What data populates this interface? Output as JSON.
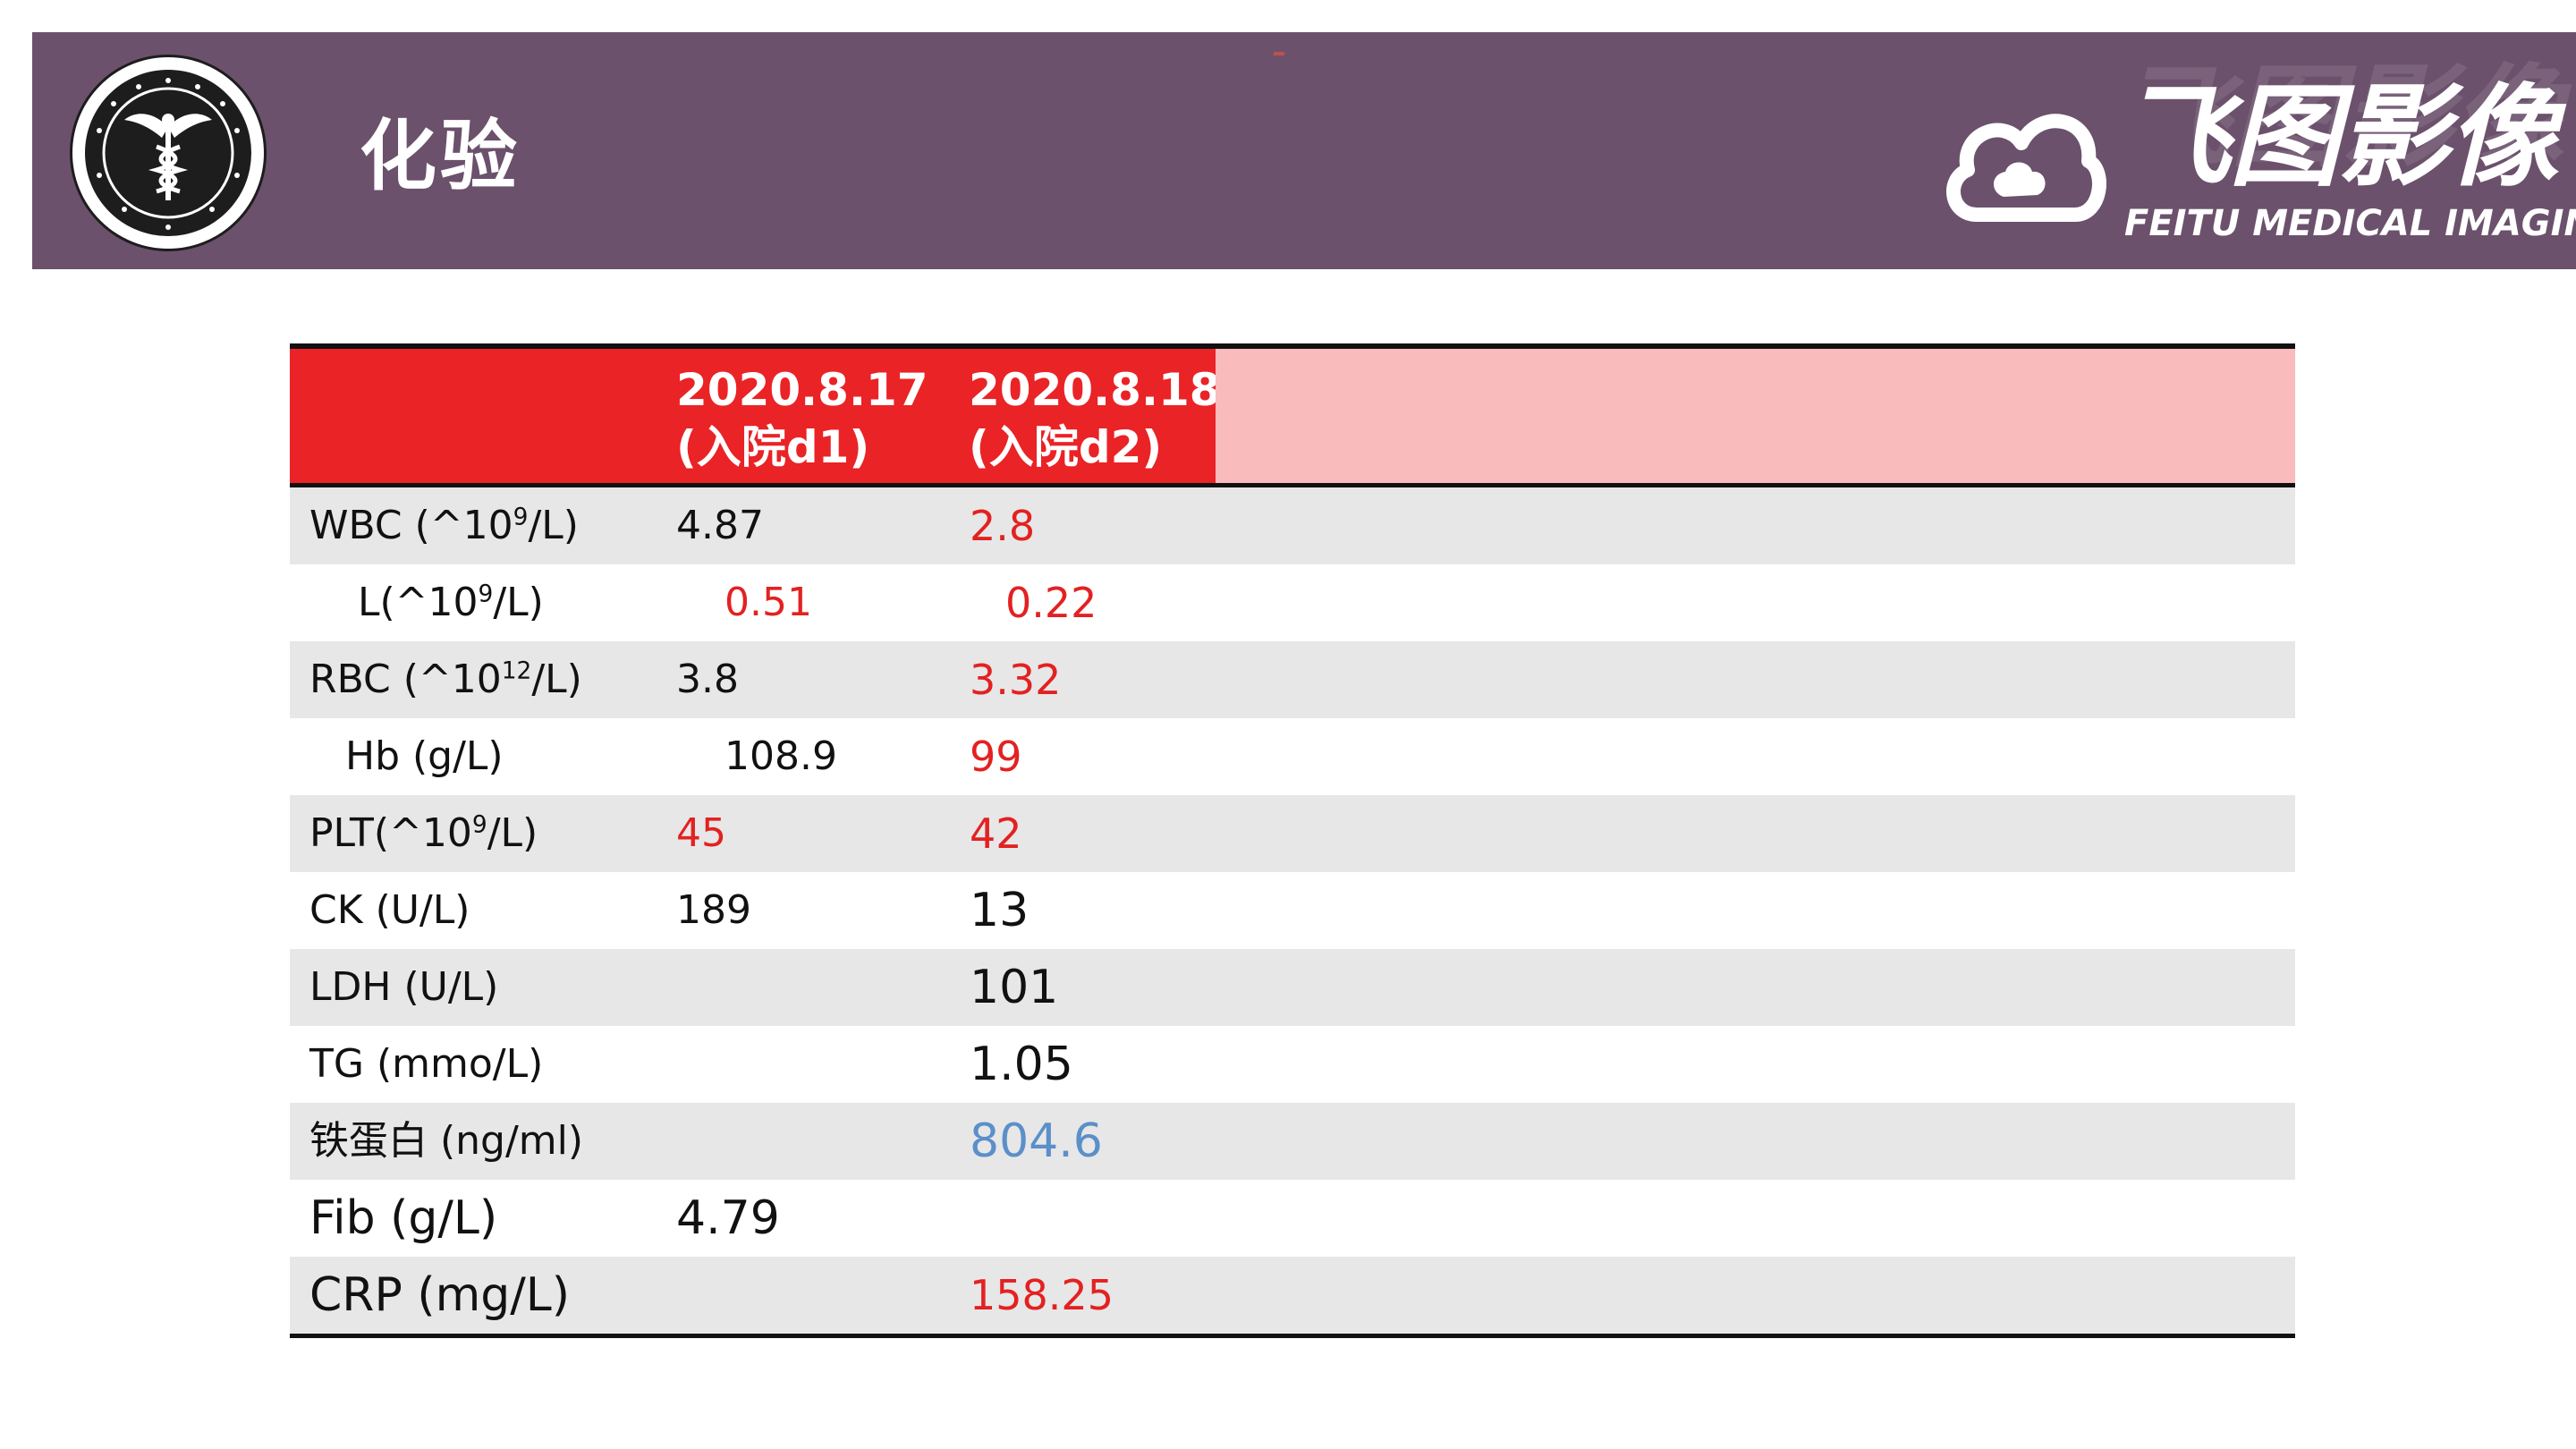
{
  "colors": {
    "header_band": "#6b516c",
    "table_header_red": "#ea2326",
    "table_header_pink": "#f9bbbb",
    "row_shade": "#e7e7e7",
    "value_red": "#e32121",
    "value_blue": "#5b8fc9"
  },
  "slide": {
    "title": "化验"
  },
  "emblem": {
    "icon": "caduceus-icon"
  },
  "brand": {
    "name_cn": "飞图影像",
    "name_en": "FEITU MEDICAL IMAGING",
    "icon": "cloud-logo-icon"
  },
  "table": {
    "headers": [
      {
        "date": "",
        "note": ""
      },
      {
        "date": "2020.8.17",
        "note": "(入院d1)"
      },
      {
        "date": "2020.8.18",
        "note": "(入院d2)"
      }
    ],
    "rows": [
      {
        "name": "WBC (^10",
        "sup": "9",
        "unit": "/L)",
        "d1": "4.87",
        "d2": "2.8"
      },
      {
        "name": "L(^10",
        "sup": "9",
        "unit": "/L)",
        "d1": "0.51",
        "d2": "0.22"
      },
      {
        "name": "RBC  (^10",
        "sup": "12",
        "unit": "/L)",
        "d1": "3.8",
        "d2": "3.32"
      },
      {
        "name": "Hb  (g/L)",
        "sup": "",
        "unit": "",
        "d1": "108.9",
        "d2": "99"
      },
      {
        "name": "PLT(^10",
        "sup": "9",
        "unit": "/L)",
        "d1": "45",
        "d2": "42"
      },
      {
        "name": "CK  (U/L)",
        "sup": "",
        "unit": "",
        "d1": "189",
        "d2": "13"
      },
      {
        "name": "LDH  (U/L)",
        "sup": "",
        "unit": "",
        "d1": "",
        "d2": "101"
      },
      {
        "name": "TG  (mmo/L)",
        "sup": "",
        "unit": "",
        "d1": "",
        "d2": "1.05"
      },
      {
        "name": "铁蛋白 (ng/ml)",
        "sup": "",
        "unit": "",
        "d1": "",
        "d2": "804.6"
      },
      {
        "name": "Fib (g/L)",
        "sup": "",
        "unit": "",
        "d1": "4.79",
        "d2": ""
      },
      {
        "name": "CRP (mg/L)",
        "sup": "",
        "unit": "",
        "d1": "",
        "d2": "158.25"
      }
    ]
  }
}
